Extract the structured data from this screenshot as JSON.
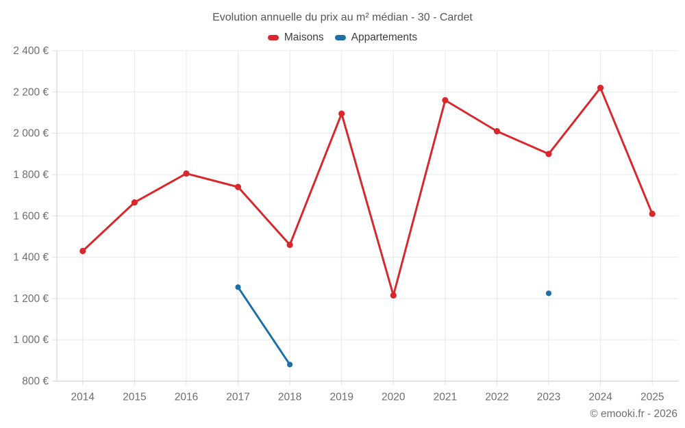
{
  "chart_data": {
    "type": "line",
    "title": "Evolution annuelle du prix au m² médian - 30 - Cardet",
    "categories": [
      "2014",
      "2015",
      "2016",
      "2017",
      "2018",
      "2019",
      "2020",
      "2021",
      "2022",
      "2023",
      "2024",
      "2025"
    ],
    "series": [
      {
        "name": "Maisons",
        "color": "#d8282e",
        "values": [
          1430,
          1665,
          1805,
          1740,
          1460,
          2095,
          1215,
          2160,
          2010,
          1900,
          2220,
          1610
        ]
      },
      {
        "name": "Appartements",
        "color": "#1d6fa5",
        "values": [
          null,
          null,
          null,
          1255,
          880,
          null,
          null,
          null,
          null,
          1225,
          null,
          null
        ]
      }
    ],
    "xlabel": "",
    "ylabel": "",
    "ylim": [
      800,
      2400
    ],
    "yticks": [
      {
        "value": 800,
        "label": "800 €"
      },
      {
        "value": 1000,
        "label": "1 000 €"
      },
      {
        "value": 1200,
        "label": "1 200 €"
      },
      {
        "value": 1400,
        "label": "1 400 €"
      },
      {
        "value": 1600,
        "label": "1 600 €"
      },
      {
        "value": 1800,
        "label": "1 800 €"
      },
      {
        "value": 2000,
        "label": "2 000 €"
      },
      {
        "value": 2200,
        "label": "2 200 €"
      },
      {
        "value": 2400,
        "label": "2 400 €"
      }
    ],
    "grid": true,
    "legend_position": "top"
  },
  "footer": {
    "copyright": "© emooki.fr - 2026"
  },
  "colors": {
    "grid_line": "#e8e8e8",
    "axis_line": "#cccccc",
    "tick_line": "#dddddd",
    "axis_text": "#6e6e6e",
    "title_text": "#565656"
  }
}
